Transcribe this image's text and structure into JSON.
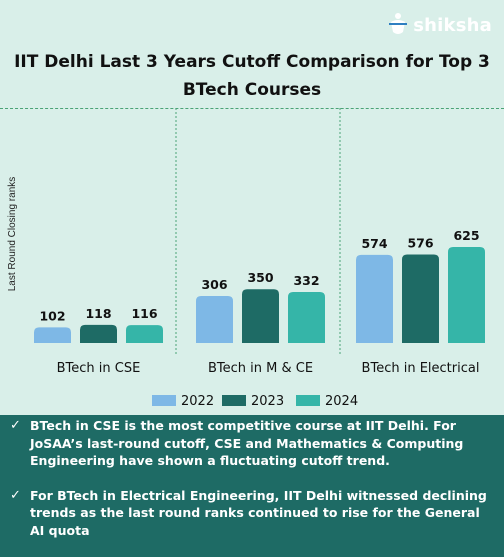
{
  "brand": {
    "name": "shiksha"
  },
  "header": {
    "title_line1": "IIT Delhi Last 3 Years Cutoff Comparison  for Top 3",
    "title_line2": "BTech Courses"
  },
  "chart_data": {
    "type": "bar",
    "title": "IIT Delhi Last 3 Years Cutoff Comparison for Top 3 BTech Courses",
    "xlabel": "",
    "ylabel": "Last Round Closing ranks",
    "categories": [
      "BTech in CSE",
      "BTech in M & CE",
      "BTech in Electrical"
    ],
    "series": [
      {
        "name": "2022",
        "values": [
          102,
          306,
          574
        ],
        "color": "#7eb8e6"
      },
      {
        "name": "2023",
        "values": [
          118,
          350,
          576
        ],
        "color": "#1e6b65"
      },
      {
        "name": "2024",
        "values": [
          116,
          332,
          625
        ],
        "color": "#35b5a8"
      }
    ],
    "grid": false,
    "legend": "bottom",
    "data_labels": true
  },
  "notes": {
    "items": [
      "BTech in CSE is the most competitive course at IIT Delhi. For JoSAA’s last-round cutoff, CSE and Mathematics & Computing Engineering have shown a fluctuating cutoff trend.",
      "For BTech in Electrical Engineering, IIT Delhi witnessed declining trends as the last round ranks continued to rise for the General AI quota"
    ],
    "check_glyph": "✓"
  }
}
